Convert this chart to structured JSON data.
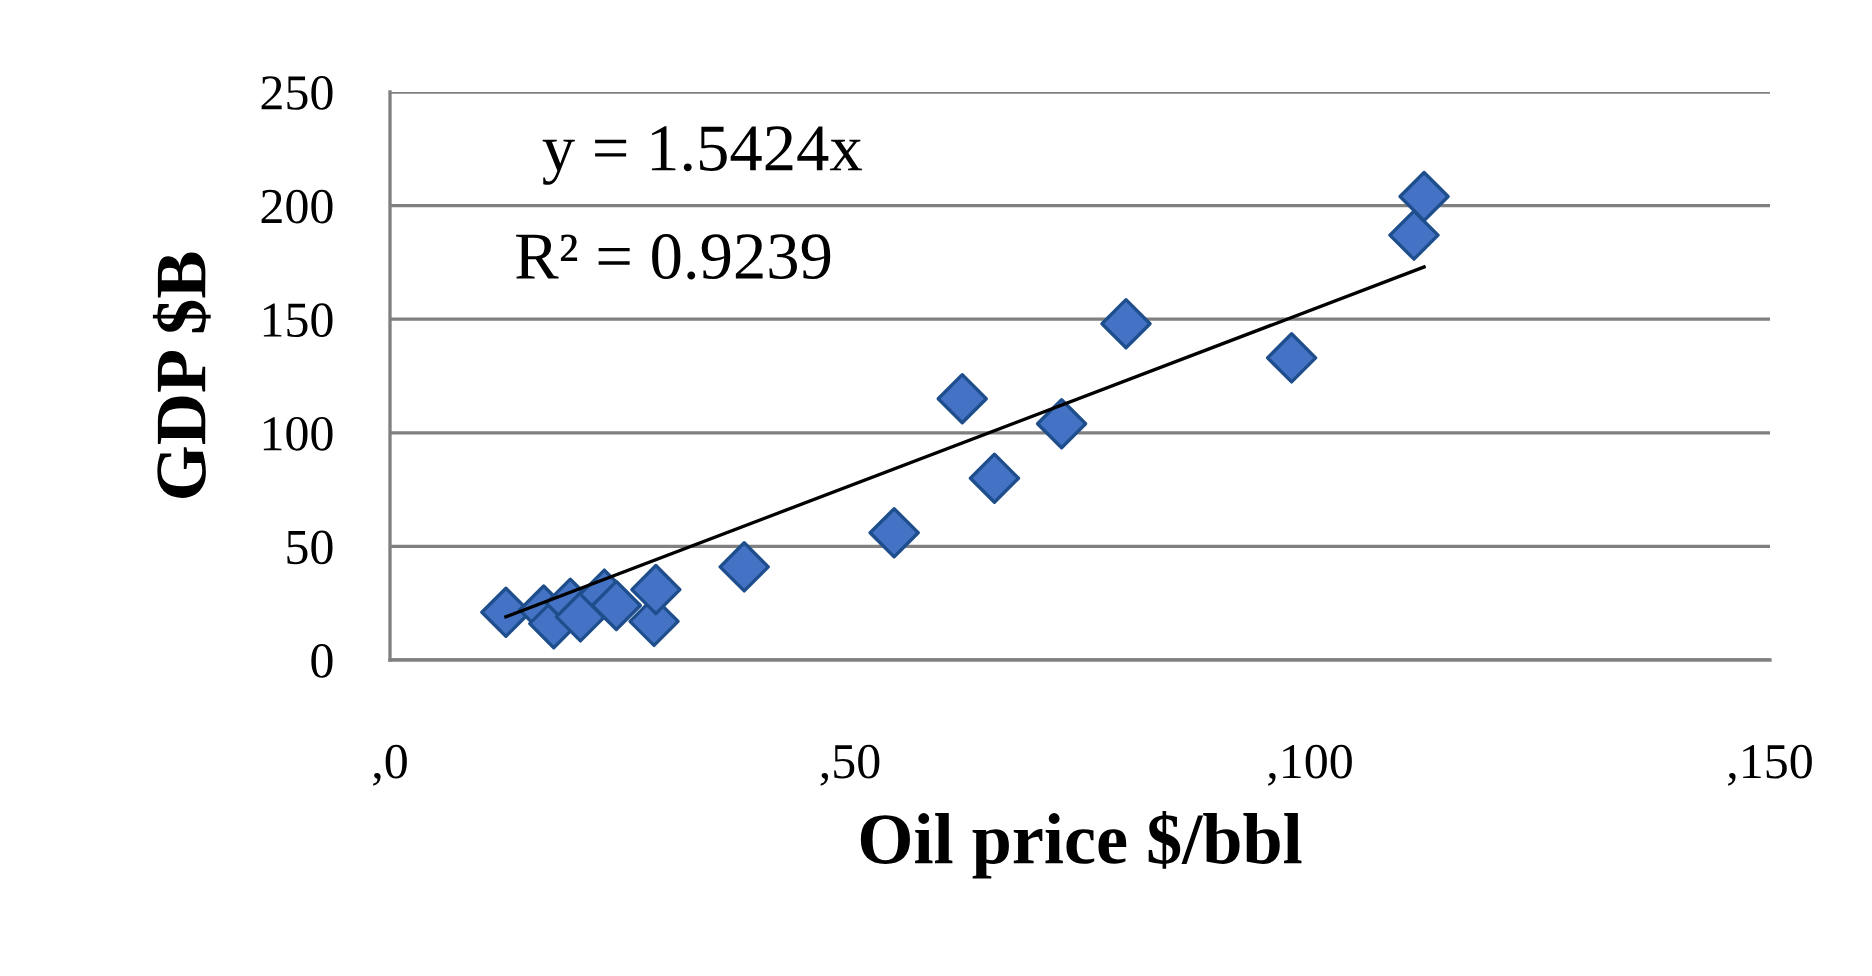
{
  "chart_data": {
    "type": "scatter",
    "xlabel": "Oil price $/bbl",
    "ylabel": "GDP $B",
    "xlim": [
      0,
      150
    ],
    "xticks": [
      {
        "value": 0,
        "label": ",0"
      },
      {
        "value": 50,
        "label": ",50"
      },
      {
        "value": 100,
        "label": ",100"
      },
      {
        "value": 150,
        "label": ",150"
      }
    ],
    "ylim": [
      0,
      250
    ],
    "yticks": [
      0,
      50,
      100,
      150,
      200,
      250
    ],
    "grid": "y",
    "marker": "diamond",
    "series": [
      {
        "color": "#4472c4",
        "x": [
          12.6,
          16.7,
          17.8,
          19.6,
          20.7,
          23.3,
          24.6,
          28.7,
          28.9,
          38.5,
          54.8,
          62.2,
          65.7,
          73,
          80,
          98,
          111.3,
          112.4
        ],
        "values": [
          21,
          22,
          16,
          25,
          19,
          29,
          24,
          17,
          31,
          41,
          56,
          115,
          80,
          104,
          148,
          133,
          187,
          204
        ]
      },
      {
        "type": "line",
        "color": "#000000",
        "marker": "none",
        "x": [
          12.6,
          112.4
        ],
        "values": [
          19,
          173
        ]
      }
    ],
    "annotations": [
      "y = 1.5424x",
      "R² = 0.9239"
    ]
  }
}
